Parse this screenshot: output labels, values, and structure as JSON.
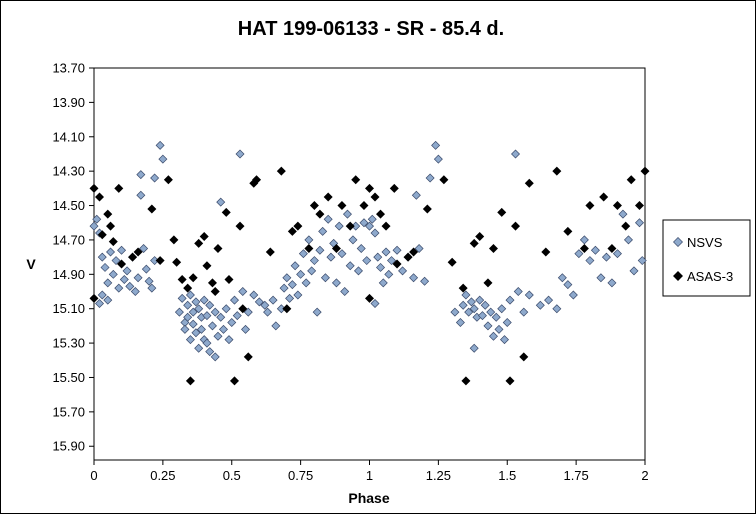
{
  "chart_data": {
    "type": "scatter",
    "title": "HAT 199-06133  - SR - 85.4 d.",
    "xlabel": "Phase",
    "ylabel": "V",
    "xlim": [
      0,
      2
    ],
    "ylim": [
      15.98,
      13.7
    ],
    "y_inverted": true,
    "x_ticks": [
      "0",
      "0.25",
      "0.5",
      "0.75",
      "1",
      "1.25",
      "1.5",
      "1.75",
      "2"
    ],
    "y_ticks": [
      "13.70",
      "13.90",
      "14.10",
      "14.30",
      "14.50",
      "14.70",
      "14.90",
      "15.10",
      "15.30",
      "15.50",
      "15.70",
      "15.90"
    ],
    "grid": false,
    "legend": "right",
    "series": [
      {
        "name": "NSVS",
        "marker": "diamond",
        "color": "#8ea9cc",
        "stroke": "#3a4a6a",
        "points": [
          [
            0.0,
            14.62
          ],
          [
            0.01,
            14.58
          ],
          [
            0.02,
            14.66
          ],
          [
            0.02,
            15.07
          ],
          [
            0.03,
            14.8
          ],
          [
            0.03,
            15.02
          ],
          [
            0.04,
            14.86
          ],
          [
            0.05,
            14.95
          ],
          [
            0.05,
            15.05
          ],
          [
            0.06,
            14.77
          ],
          [
            0.07,
            14.9
          ],
          [
            0.08,
            14.82
          ],
          [
            0.09,
            14.98
          ],
          [
            0.1,
            14.76
          ],
          [
            0.11,
            14.93
          ],
          [
            0.12,
            14.88
          ],
          [
            0.13,
            14.97
          ],
          [
            0.14,
            14.8
          ],
          [
            0.15,
            15.0
          ],
          [
            0.16,
            14.92
          ],
          [
            0.17,
            14.44
          ],
          [
            0.17,
            14.32
          ],
          [
            0.18,
            14.75
          ],
          [
            0.19,
            14.87
          ],
          [
            0.2,
            14.94
          ],
          [
            0.21,
            14.98
          ],
          [
            0.22,
            14.34
          ],
          [
            0.22,
            14.82
          ],
          [
            0.24,
            14.15
          ],
          [
            0.25,
            14.23
          ],
          [
            0.31,
            15.12
          ],
          [
            0.32,
            15.04
          ],
          [
            0.33,
            15.18
          ],
          [
            0.33,
            15.22
          ],
          [
            0.34,
            15.08
          ],
          [
            0.34,
            15.15
          ],
          [
            0.35,
            15.02
          ],
          [
            0.35,
            15.28
          ],
          [
            0.36,
            15.12
          ],
          [
            0.36,
            15.19
          ],
          [
            0.37,
            15.06
          ],
          [
            0.37,
            15.24
          ],
          [
            0.38,
            15.1
          ],
          [
            0.38,
            15.33
          ],
          [
            0.39,
            15.15
          ],
          [
            0.39,
            15.22
          ],
          [
            0.4,
            15.05
          ],
          [
            0.4,
            15.28
          ],
          [
            0.41,
            15.14
          ],
          [
            0.41,
            15.3
          ],
          [
            0.42,
            15.08
          ],
          [
            0.42,
            15.35
          ],
          [
            0.43,
            15.2
          ],
          [
            0.44,
            15.12
          ],
          [
            0.44,
            15.38
          ],
          [
            0.45,
            15.26
          ],
          [
            0.46,
            15.15
          ],
          [
            0.46,
            14.48
          ],
          [
            0.47,
            15.22
          ],
          [
            0.48,
            15.1
          ],
          [
            0.49,
            15.28
          ],
          [
            0.5,
            15.18
          ],
          [
            0.51,
            15.05
          ],
          [
            0.52,
            15.14
          ],
          [
            0.53,
            14.2
          ],
          [
            0.54,
            15.0
          ],
          [
            0.55,
            15.22
          ],
          [
            0.56,
            15.12
          ],
          [
            0.58,
            15.02
          ],
          [
            0.6,
            15.06
          ],
          [
            0.62,
            15.08
          ],
          [
            0.63,
            15.12
          ],
          [
            0.65,
            15.05
          ],
          [
            0.66,
            15.2
          ],
          [
            0.68,
            15.1
          ],
          [
            0.69,
            14.98
          ],
          [
            0.7,
            14.92
          ],
          [
            0.71,
            15.04
          ],
          [
            0.72,
            14.96
          ],
          [
            0.73,
            14.85
          ],
          [
            0.74,
            15.02
          ],
          [
            0.75,
            14.9
          ],
          [
            0.76,
            14.78
          ],
          [
            0.77,
            14.95
          ],
          [
            0.78,
            14.7
          ],
          [
            0.79,
            14.88
          ],
          [
            0.8,
            14.82
          ],
          [
            0.81,
            15.12
          ],
          [
            0.82,
            14.76
          ],
          [
            0.83,
            14.65
          ],
          [
            0.84,
            14.92
          ],
          [
            0.85,
            14.58
          ],
          [
            0.86,
            14.8
          ],
          [
            0.87,
            14.72
          ],
          [
            0.88,
            14.95
          ],
          [
            0.89,
            14.62
          ],
          [
            0.9,
            14.78
          ],
          [
            0.91,
            15.0
          ],
          [
            0.92,
            14.55
          ],
          [
            0.93,
            14.85
          ],
          [
            0.94,
            14.7
          ],
          [
            0.95,
            14.62
          ],
          [
            0.96,
            14.88
          ],
          [
            0.97,
            14.75
          ],
          [
            0.98,
            14.6
          ],
          [
            0.99,
            14.82
          ],
          [
            1.0,
            14.62
          ],
          [
            1.01,
            14.58
          ],
          [
            1.02,
            14.66
          ],
          [
            1.02,
            15.07
          ],
          [
            1.03,
            14.8
          ],
          [
            1.04,
            14.86
          ],
          [
            1.05,
            14.95
          ],
          [
            1.06,
            14.77
          ],
          [
            1.07,
            14.9
          ],
          [
            1.08,
            14.82
          ],
          [
            1.1,
            14.76
          ],
          [
            1.12,
            14.88
          ],
          [
            1.14,
            14.8
          ],
          [
            1.16,
            14.92
          ],
          [
            1.17,
            14.44
          ],
          [
            1.18,
            14.75
          ],
          [
            1.2,
            14.94
          ],
          [
            1.22,
            14.34
          ],
          [
            1.24,
            14.15
          ],
          [
            1.25,
            14.23
          ],
          [
            1.31,
            15.12
          ],
          [
            1.33,
            15.18
          ],
          [
            1.34,
            15.08
          ],
          [
            1.35,
            15.02
          ],
          [
            1.36,
            15.12
          ],
          [
            1.37,
            15.06
          ],
          [
            1.38,
            15.1
          ],
          [
            1.38,
            15.33
          ],
          [
            1.39,
            15.15
          ],
          [
            1.4,
            15.05
          ],
          [
            1.41,
            15.14
          ],
          [
            1.42,
            15.08
          ],
          [
            1.43,
            15.2
          ],
          [
            1.44,
            15.12
          ],
          [
            1.45,
            15.26
          ],
          [
            1.46,
            15.15
          ],
          [
            1.47,
            15.22
          ],
          [
            1.48,
            15.1
          ],
          [
            1.49,
            15.28
          ],
          [
            1.5,
            15.18
          ],
          [
            1.51,
            15.05
          ],
          [
            1.53,
            14.2
          ],
          [
            1.54,
            15.0
          ],
          [
            1.56,
            15.12
          ],
          [
            1.58,
            15.02
          ],
          [
            1.62,
            15.08
          ],
          [
            1.65,
            15.05
          ],
          [
            1.68,
            15.1
          ],
          [
            1.7,
            14.92
          ],
          [
            1.72,
            14.96
          ],
          [
            1.74,
            15.02
          ],
          [
            1.76,
            14.78
          ],
          [
            1.78,
            14.7
          ],
          [
            1.8,
            14.82
          ],
          [
            1.82,
            14.76
          ],
          [
            1.84,
            14.92
          ],
          [
            1.86,
            14.8
          ],
          [
            1.88,
            14.95
          ],
          [
            1.9,
            14.78
          ],
          [
            1.92,
            14.55
          ],
          [
            1.94,
            14.7
          ],
          [
            1.96,
            14.88
          ],
          [
            1.98,
            14.6
          ],
          [
            1.99,
            14.82
          ]
        ]
      },
      {
        "name": "ASAS-3",
        "marker": "diamond",
        "color": "#000000",
        "stroke": "#000000",
        "points": [
          [
            0.0,
            14.4
          ],
          [
            0.0,
            15.04
          ],
          [
            0.02,
            14.45
          ],
          [
            0.03,
            14.67
          ],
          [
            0.05,
            14.55
          ],
          [
            0.06,
            14.62
          ],
          [
            0.07,
            14.71
          ],
          [
            0.09,
            14.4
          ],
          [
            0.1,
            14.84
          ],
          [
            0.14,
            14.8
          ],
          [
            0.16,
            14.77
          ],
          [
            0.21,
            14.52
          ],
          [
            0.24,
            14.82
          ],
          [
            0.27,
            14.35
          ],
          [
            0.29,
            14.7
          ],
          [
            0.3,
            14.83
          ],
          [
            0.32,
            14.93
          ],
          [
            0.34,
            14.98
          ],
          [
            0.35,
            15.52
          ],
          [
            0.36,
            14.92
          ],
          [
            0.38,
            14.72
          ],
          [
            0.4,
            14.68
          ],
          [
            0.41,
            14.85
          ],
          [
            0.43,
            14.95
          ],
          [
            0.44,
            15.0
          ],
          [
            0.45,
            14.75
          ],
          [
            0.48,
            14.54
          ],
          [
            0.49,
            14.93
          ],
          [
            0.51,
            15.52
          ],
          [
            0.53,
            14.62
          ],
          [
            0.54,
            15.1
          ],
          [
            0.56,
            15.38
          ],
          [
            0.58,
            14.37
          ],
          [
            0.59,
            14.35
          ],
          [
            0.64,
            14.77
          ],
          [
            0.68,
            14.3
          ],
          [
            0.7,
            15.1
          ],
          [
            0.72,
            14.65
          ],
          [
            0.74,
            14.62
          ],
          [
            0.78,
            14.75
          ],
          [
            0.8,
            14.5
          ],
          [
            0.82,
            14.55
          ],
          [
            0.85,
            14.45
          ],
          [
            0.88,
            14.75
          ],
          [
            0.9,
            14.5
          ],
          [
            0.93,
            14.62
          ],
          [
            0.95,
            14.35
          ],
          [
            0.98,
            14.5
          ],
          [
            1.0,
            14.4
          ],
          [
            1.0,
            15.04
          ],
          [
            1.02,
            14.45
          ],
          [
            1.04,
            14.55
          ],
          [
            1.06,
            14.62
          ],
          [
            1.09,
            14.4
          ],
          [
            1.1,
            14.84
          ],
          [
            1.14,
            14.8
          ],
          [
            1.16,
            14.77
          ],
          [
            1.21,
            14.52
          ],
          [
            1.27,
            14.35
          ],
          [
            1.3,
            14.83
          ],
          [
            1.34,
            14.98
          ],
          [
            1.35,
            15.52
          ],
          [
            1.38,
            14.72
          ],
          [
            1.4,
            14.68
          ],
          [
            1.43,
            14.95
          ],
          [
            1.45,
            14.75
          ],
          [
            1.48,
            14.54
          ],
          [
            1.51,
            15.52
          ],
          [
            1.53,
            14.62
          ],
          [
            1.56,
            15.38
          ],
          [
            1.58,
            14.37
          ],
          [
            1.64,
            14.77
          ],
          [
            1.68,
            14.3
          ],
          [
            1.72,
            14.65
          ],
          [
            1.78,
            14.75
          ],
          [
            1.8,
            14.5
          ],
          [
            1.85,
            14.45
          ],
          [
            1.88,
            14.75
          ],
          [
            1.9,
            14.5
          ],
          [
            1.93,
            14.62
          ],
          [
            1.95,
            14.35
          ],
          [
            1.98,
            14.5
          ],
          [
            2.0,
            14.3
          ]
        ]
      }
    ]
  }
}
